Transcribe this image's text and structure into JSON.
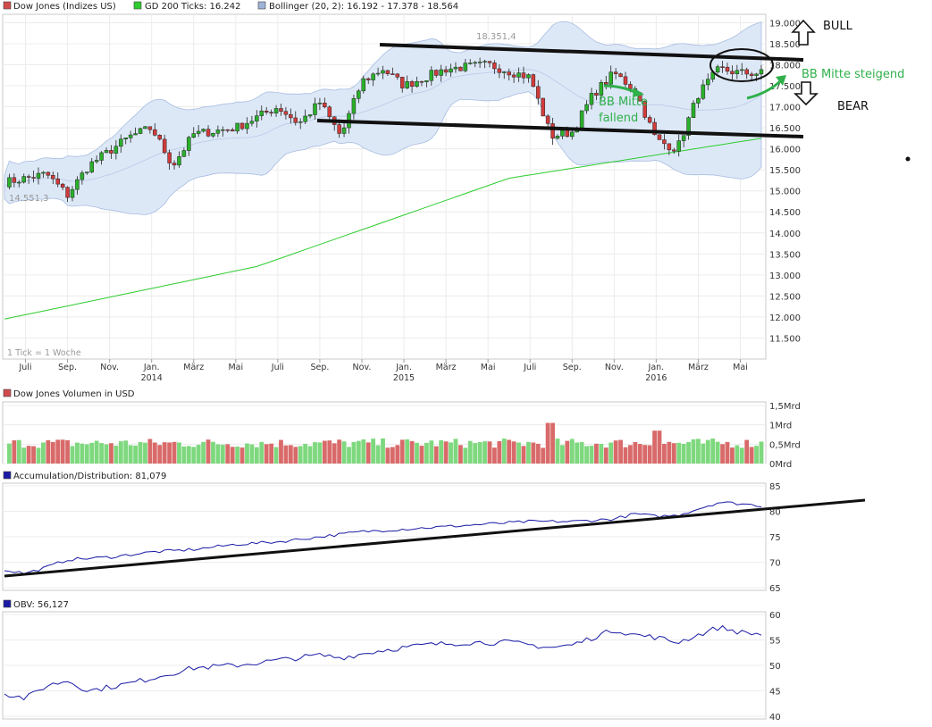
{
  "panel_price": {
    "legend": [
      {
        "label": "Dow Jones (Indizes US)",
        "swatch": "#d24b4b"
      },
      {
        "label": "GD 200 Ticks: 16.242",
        "swatch": "#2ecc2e"
      },
      {
        "label": "Bollinger (20, 2): 16.192 - 17.378 - 18.564",
        "swatch": "#9fb3d9"
      }
    ],
    "y_ticks": [
      "19.000",
      "18.500",
      "18.000",
      "17.500",
      "17.000",
      "16.500",
      "16.000",
      "15.500",
      "15.000",
      "14.500",
      "14.000",
      "13.500",
      "13.000",
      "12.500",
      "12.000",
      "11.500"
    ],
    "x_ticks": [
      "Juli",
      "Sep.",
      "Nov.",
      "Jan.",
      "März",
      "Mai",
      "Juli",
      "Sep.",
      "Nov.",
      "Jan.",
      "März",
      "Mai",
      "Juli",
      "Sep.",
      "Nov.",
      "Jan.",
      "März",
      "Mai"
    ],
    "year_labels": [
      "2014",
      "2015",
      "2016"
    ],
    "high_label": "18.351,4",
    "low_label": "14.551,3",
    "watermark": "1 Tick = 1 Woche",
    "annotations": {
      "bull": "BULL",
      "bear": "BEAR",
      "bb_rising": "BB Mitte steigend",
      "bb_falling_line1": "BB Mitte",
      "bb_falling_line2": "fallend"
    }
  },
  "panel_volume": {
    "legend": {
      "label": "Dow Jones Volumen in USD",
      "swatch": "#d24b4b"
    },
    "y_ticks": [
      "1,5Mrd",
      "1Mrd",
      "0,5Mrd",
      "0Mrd"
    ]
  },
  "panel_ad": {
    "legend": {
      "label": "Accumulation/Distribution: 81,079",
      "swatch": "#1a1aa6"
    },
    "y_ticks": [
      "85",
      "80",
      "75",
      "70",
      "65"
    ]
  },
  "panel_obv": {
    "legend": {
      "label": "OBV: 56,127",
      "swatch": "#1a1aa6"
    },
    "y_ticks": [
      "60",
      "55",
      "50",
      "45",
      "40"
    ]
  },
  "chart_data": [
    {
      "type": "candlestick",
      "title": "Dow Jones (Indizes US)",
      "interval": "weekly",
      "x_range": [
        "2013-06",
        "2016-06"
      ],
      "ylim": [
        11000,
        19200
      ],
      "close_anchors": [
        {
          "x": "2013-06",
          "y": 15200
        },
        {
          "x": "2013-08",
          "y": 15400
        },
        {
          "x": "2013-09",
          "y": 14900
        },
        {
          "x": "2013-10",
          "y": 15600
        },
        {
          "x": "2013-12",
          "y": 16300
        },
        {
          "x": "2014-01",
          "y": 16500
        },
        {
          "x": "2014-02",
          "y": 15600
        },
        {
          "x": "2014-03",
          "y": 16350
        },
        {
          "x": "2014-05",
          "y": 16500
        },
        {
          "x": "2014-07",
          "y": 17000
        },
        {
          "x": "2014-08",
          "y": 16600
        },
        {
          "x": "2014-09",
          "y": 17100
        },
        {
          "x": "2014-10",
          "y": 16300
        },
        {
          "x": "2014-11",
          "y": 17600
        },
        {
          "x": "2014-12",
          "y": 17900
        },
        {
          "x": "2015-01",
          "y": 17500
        },
        {
          "x": "2015-03",
          "y": 17900
        },
        {
          "x": "2015-05",
          "y": 18000
        },
        {
          "x": "2015-07",
          "y": 17700
        },
        {
          "x": "2015-08",
          "y": 16300
        },
        {
          "x": "2015-09",
          "y": 16400
        },
        {
          "x": "2015-10",
          "y": 17300
        },
        {
          "x": "2015-11",
          "y": 17800
        },
        {
          "x": "2015-12",
          "y": 17400
        },
        {
          "x": "2016-01",
          "y": 16200
        },
        {
          "x": "2016-02",
          "y": 16000
        },
        {
          "x": "2016-03",
          "y": 17300
        },
        {
          "x": "2016-04",
          "y": 17900
        },
        {
          "x": "2016-05",
          "y": 17800
        },
        {
          "x": "2016-06",
          "y": 17800
        }
      ],
      "period_high": 18351.4,
      "period_low": 14551.3,
      "series": [
        {
          "name": "GD 200 Ticks",
          "last": 16242,
          "points": [
            {
              "x": "2013-06",
              "y": 11950
            },
            {
              "x": "2014-06",
              "y": 13200
            },
            {
              "x": "2015-06",
              "y": 15300
            },
            {
              "x": "2016-06",
              "y": 16250
            }
          ]
        },
        {
          "name": "Bollinger (20, 2)",
          "lower": 16192,
          "middle": 17378,
          "upper": 18564
        }
      ],
      "trend_lines": [
        {
          "from": {
            "x": "2014-11",
            "y": 18300
          },
          "to": {
            "x": "2016-06",
            "y": 17900
          }
        },
        {
          "from": {
            "x": "2014-09",
            "y": 16250
          },
          "to": {
            "x": "2016-06",
            "y": 15800
          }
        }
      ]
    },
    {
      "type": "bar",
      "title": "Dow Jones Volumen in USD",
      "unit": "Mrd",
      "ylim": [
        0,
        1.5
      ],
      "typical_range": [
        0.4,
        0.65
      ],
      "peaks": [
        {
          "x": "2015-08",
          "y": 1.05
        },
        {
          "x": "2016-01",
          "y": 0.85
        }
      ]
    },
    {
      "type": "line",
      "title": "Accumulation/Distribution",
      "last": 81.079,
      "ylim": [
        65,
        85
      ],
      "points": [
        {
          "x": "2013-06",
          "y": 68.5
        },
        {
          "x": "2013-07",
          "y": 67.8
        },
        {
          "x": "2013-08",
          "y": 69
        },
        {
          "x": "2013-09",
          "y": 70.5
        },
        {
          "x": "2013-11",
          "y": 71
        },
        {
          "x": "2014-01",
          "y": 72
        },
        {
          "x": "2014-03",
          "y": 72.5
        },
        {
          "x": "2014-05",
          "y": 73.5
        },
        {
          "x": "2014-07",
          "y": 74
        },
        {
          "x": "2014-09",
          "y": 75
        },
        {
          "x": "2014-11",
          "y": 76
        },
        {
          "x": "2015-01",
          "y": 76.5
        },
        {
          "x": "2015-03",
          "y": 77
        },
        {
          "x": "2015-05",
          "y": 77.5
        },
        {
          "x": "2015-07",
          "y": 78
        },
        {
          "x": "2015-09",
          "y": 78
        },
        {
          "x": "2015-11",
          "y": 78.5
        },
        {
          "x": "2015-12",
          "y": 79.5
        },
        {
          "x": "2016-01",
          "y": 79
        },
        {
          "x": "2016-02",
          "y": 79.2
        },
        {
          "x": "2016-03",
          "y": 80.5
        },
        {
          "x": "2016-04",
          "y": 81.8
        },
        {
          "x": "2016-05",
          "y": 81.5
        },
        {
          "x": "2016-06",
          "y": 81.1
        }
      ],
      "trend_line": {
        "from": {
          "x": "2013-06",
          "y": 67.6
        },
        "to": {
          "x": "2016-06",
          "y": 80.3
        }
      }
    },
    {
      "type": "line",
      "title": "OBV",
      "last": 56.127,
      "ylim": [
        40,
        60
      ],
      "points": [
        {
          "x": "2013-06",
          "y": 44.5
        },
        {
          "x": "2013-07",
          "y": 43.5
        },
        {
          "x": "2013-08",
          "y": 46
        },
        {
          "x": "2013-09",
          "y": 47
        },
        {
          "x": "2013-10",
          "y": 45
        },
        {
          "x": "2013-12",
          "y": 46.5
        },
        {
          "x": "2014-02",
          "y": 48.5
        },
        {
          "x": "2014-03",
          "y": 49.5
        },
        {
          "x": "2014-05",
          "y": 50
        },
        {
          "x": "2014-07",
          "y": 51
        },
        {
          "x": "2014-09",
          "y": 52
        },
        {
          "x": "2014-10",
          "y": 51.5
        },
        {
          "x": "2014-12",
          "y": 53
        },
        {
          "x": "2015-02",
          "y": 54
        },
        {
          "x": "2015-04",
          "y": 54.5
        },
        {
          "x": "2015-06",
          "y": 54.5
        },
        {
          "x": "2015-08",
          "y": 53.5
        },
        {
          "x": "2015-09",
          "y": 54
        },
        {
          "x": "2015-10",
          "y": 55.5
        },
        {
          "x": "2015-11",
          "y": 57
        },
        {
          "x": "2015-12",
          "y": 56
        },
        {
          "x": "2016-01",
          "y": 55.5
        },
        {
          "x": "2016-02",
          "y": 54.5
        },
        {
          "x": "2016-03",
          "y": 56
        },
        {
          "x": "2016-04",
          "y": 57.5
        },
        {
          "x": "2016-05",
          "y": 56.5
        },
        {
          "x": "2016-06",
          "y": 56.1
        }
      ]
    }
  ]
}
